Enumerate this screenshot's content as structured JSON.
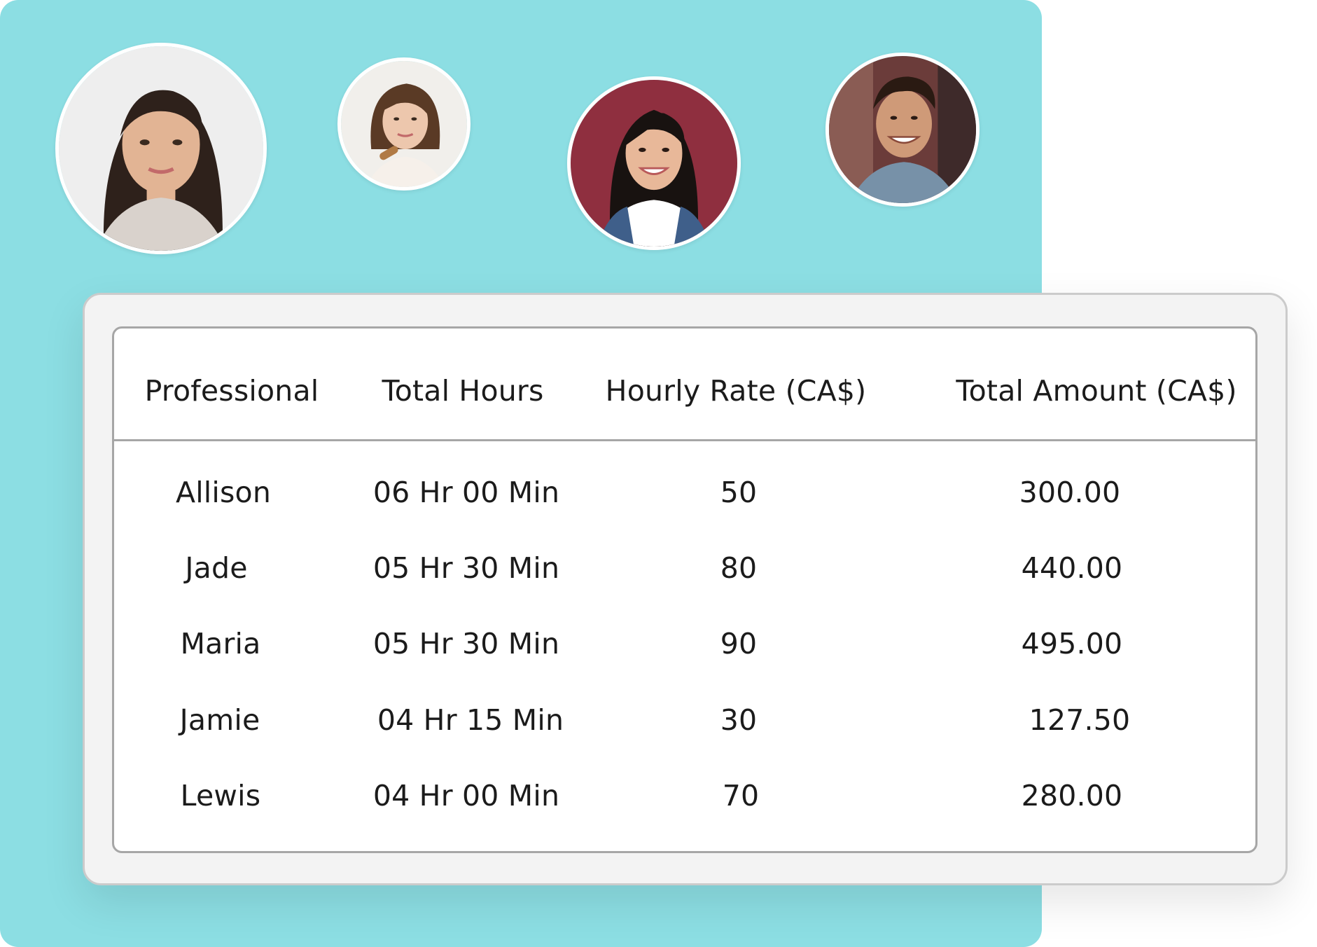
{
  "avatars": [
    {
      "name": "avatar-allison",
      "hair": "#2e211b",
      "skin": "#e2b494",
      "bg": "#eeeeee",
      "shirt": "#d9d2cc"
    },
    {
      "name": "avatar-jade",
      "hair": "#5a3a25",
      "skin": "#edc7ad",
      "bg": "#f1efeb",
      "shirt": "#f6f0ea"
    },
    {
      "name": "avatar-maria",
      "hair": "#181210",
      "skin": "#e8b899",
      "bg": "#8f2f3f",
      "shirt": "#ffffff"
    },
    {
      "name": "avatar-jamie",
      "hair": "#2a1a12",
      "skin": "#cf9a78",
      "bg": "#6b3c3a",
      "shirt": "#7791a8"
    }
  ],
  "table": {
    "headers": [
      "Professional",
      "Total Hours",
      "Hourly Rate (CA$)",
      "Total Amount (CA$)"
    ],
    "rows": [
      [
        "Allison",
        "06 Hr 00 Min",
        "50",
        "300.00"
      ],
      [
        "Jade",
        "05 Hr 30 Min",
        "80",
        "440.00"
      ],
      [
        "Maria",
        "05 Hr 30 Min",
        "90",
        "495.00"
      ],
      [
        "Jamie",
        "04 Hr 15 Min",
        "30",
        "127.50"
      ],
      [
        "Lewis",
        "04 Hr 00 Min",
        "70",
        "280.00"
      ]
    ]
  },
  "colors": {
    "panel": "#8cdee3",
    "card_outer": "#f3f3f3",
    "border": "#a6a6a6",
    "text": "#1b1b1b"
  }
}
